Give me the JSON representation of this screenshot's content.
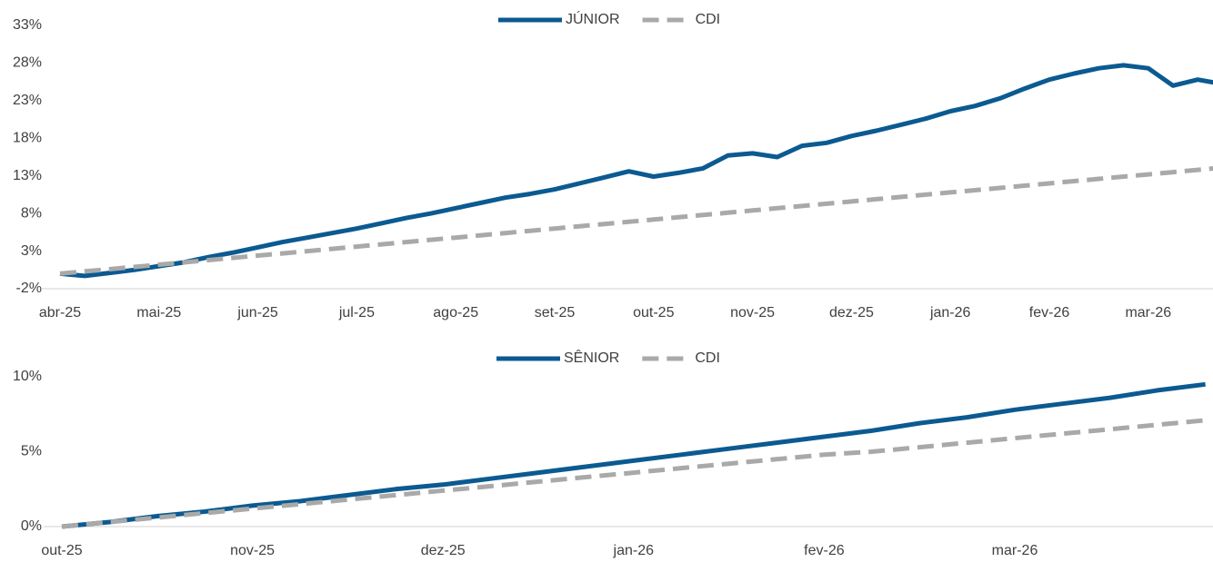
{
  "chart_data": [
    {
      "type": "line",
      "categories": [
        "abr-25",
        null,
        null,
        null,
        "mai-25",
        null,
        null,
        null,
        "jun-25",
        null,
        null,
        null,
        "jul-25",
        null,
        null,
        null,
        "ago-25",
        null,
        null,
        null,
        "set-25",
        null,
        null,
        null,
        "out-25",
        null,
        null,
        null,
        "nov-25",
        null,
        null,
        null,
        "dez-25",
        null,
        null,
        null,
        "jan-26",
        null,
        null,
        null,
        "fev-26",
        null,
        null,
        null,
        "mar-26",
        null,
        null,
        null
      ],
      "series": [
        {
          "name": "JÚNIOR",
          "color": "#0b5a91",
          "dash": false,
          "values": [
            0,
            -0.3,
            0.1,
            0.5,
            1.0,
            1.5,
            2.2,
            2.8,
            3.5,
            4.2,
            4.8,
            5.4,
            6.0,
            6.7,
            7.4,
            8.0,
            8.7,
            9.4,
            10.1,
            10.6,
            11.2,
            12.0,
            12.8,
            13.6,
            12.9,
            13.4,
            14.0,
            15.7,
            16.0,
            15.5,
            17.0,
            17.4,
            18.3,
            19.0,
            19.8,
            20.6,
            21.6,
            22.3,
            23.3,
            24.6,
            25.8,
            26.6,
            27.3,
            27.7,
            27.3,
            25.0,
            25.8,
            25.2
          ]
        },
        {
          "name": "CDI",
          "color": "#a9a9a9",
          "dash": true,
          "values": [
            0,
            0.3,
            0.6,
            0.9,
            1.2,
            1.5,
            1.8,
            2.1,
            2.4,
            2.7,
            3.0,
            3.3,
            3.6,
            3.9,
            4.2,
            4.5,
            4.8,
            5.1,
            5.4,
            5.7,
            6.0,
            6.3,
            6.6,
            6.9,
            7.2,
            7.5,
            7.8,
            8.1,
            8.4,
            8.7,
            9.0,
            9.3,
            9.6,
            9.9,
            10.2,
            10.5,
            10.8,
            11.1,
            11.4,
            11.7,
            12.0,
            12.3,
            12.6,
            12.9,
            13.2,
            13.5,
            13.8,
            14.1
          ]
        }
      ],
      "ylim": [
        -2,
        33
      ],
      "yticks": [
        {
          "value": -2,
          "label": "-2%"
        },
        {
          "value": 3,
          "label": "3%"
        },
        {
          "value": 8,
          "label": "8%"
        },
        {
          "value": 13,
          "label": "13%"
        },
        {
          "value": 18,
          "label": "18%"
        },
        {
          "value": 23,
          "label": "23%"
        },
        {
          "value": 28,
          "label": "28%"
        },
        {
          "value": 33,
          "label": "33%"
        }
      ]
    },
    {
      "type": "line",
      "categories": [
        "out-25",
        null,
        null,
        null,
        "nov-25",
        null,
        null,
        null,
        "dez-25",
        null,
        null,
        null,
        "jan-26",
        null,
        null,
        null,
        "fev-26",
        null,
        null,
        null,
        "mar-26",
        null,
        null,
        null,
        null
      ],
      "series": [
        {
          "name": "SÊNIOR",
          "color": "#0b5a91",
          "dash": false,
          "values": [
            0,
            0.3,
            0.7,
            1.0,
            1.4,
            1.7,
            2.1,
            2.5,
            2.8,
            3.2,
            3.6,
            4.0,
            4.4,
            4.8,
            5.2,
            5.6,
            6.0,
            6.4,
            6.9,
            7.3,
            7.8,
            8.2,
            8.6,
            9.1,
            9.5
          ]
        },
        {
          "name": "CDI",
          "color": "#a9a9a9",
          "dash": true,
          "values": [
            0,
            0.3,
            0.6,
            0.9,
            1.2,
            1.5,
            1.8,
            2.1,
            2.4,
            2.7,
            3.0,
            3.3,
            3.6,
            3.9,
            4.2,
            4.5,
            4.8,
            5.0,
            5.3,
            5.6,
            5.9,
            6.2,
            6.5,
            6.8,
            7.1
          ]
        }
      ],
      "ylim": [
        0,
        10
      ],
      "yticks": [
        {
          "value": 0,
          "label": "0%"
        },
        {
          "value": 5,
          "label": "5%"
        },
        {
          "value": 10,
          "label": "10%"
        }
      ]
    }
  ]
}
